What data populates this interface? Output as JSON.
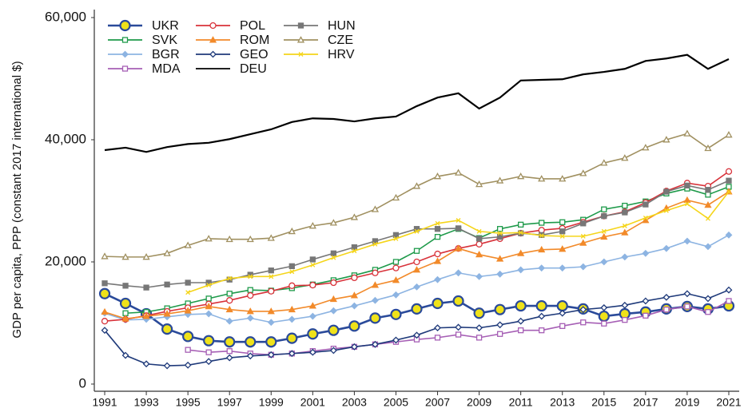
{
  "chart_data": {
    "type": "line",
    "y_label": "GDP per capita, PPP (constant 2017 international $)",
    "x": [
      1991,
      1992,
      1993,
      1994,
      1995,
      1996,
      1997,
      1998,
      1999,
      2000,
      2001,
      2002,
      2003,
      2004,
      2005,
      2006,
      2007,
      2008,
      2009,
      2010,
      2011,
      2012,
      2013,
      2014,
      2015,
      2016,
      2017,
      2018,
      2019,
      2020,
      2021
    ],
    "xlim": [
      1990.5,
      2021.5
    ],
    "xticks": [
      1991,
      1993,
      1995,
      1997,
      1999,
      2001,
      2003,
      2005,
      2007,
      2009,
      2011,
      2013,
      2015,
      2017,
      2019,
      2021
    ],
    "ylim": [
      0,
      60000
    ],
    "yticks": [
      0,
      {
        "value": 20000,
        "label": "20,000"
      },
      {
        "value": 40000,
        "label": "40,000"
      },
      {
        "value": 60000,
        "label": "60,000"
      }
    ],
    "grid": false,
    "legend": "top-left",
    "series": [
      {
        "name": "UKR",
        "color": "#2a4a9a",
        "marker": "circle",
        "marker_fill": "#efe21a",
        "values": [
          14800,
          13200,
          11500,
          9000,
          7800,
          7100,
          6900,
          6900,
          6900,
          7500,
          8200,
          8800,
          9500,
          10800,
          11400,
          12300,
          13200,
          13600,
          11600,
          12200,
          12800,
          12800,
          12800,
          12300,
          11100,
          11500,
          11800,
          12300,
          12700,
          12300,
          12800
        ]
      },
      {
        "name": "SVK",
        "color": "#1e9a4a",
        "marker": "square",
        "marker_fill": "#ffffff",
        "values": [
          null,
          11600,
          11800,
          12400,
          13200,
          14000,
          14800,
          15400,
          15300,
          15700,
          16300,
          17000,
          17800,
          18700,
          20000,
          21800,
          24100,
          25400,
          23900,
          25400,
          26100,
          26400,
          26500,
          26900,
          28600,
          29200,
          29900,
          31200,
          32000,
          31000,
          32300
        ]
      },
      {
        "name": "BGR",
        "color": "#8db4e2",
        "marker": "diamond",
        "marker_fill": "#8db4e2",
        "values": [
          11600,
          10500,
          10600,
          11000,
          11400,
          11500,
          10300,
          10800,
          10100,
          10600,
          11100,
          12000,
          12800,
          13700,
          14600,
          15900,
          17100,
          18200,
          17600,
          18000,
          18700,
          19000,
          19000,
          19200,
          20000,
          20800,
          21400,
          22200,
          23400,
          22500,
          24400
        ]
      },
      {
        "name": "MDA",
        "color": "#a65fb5",
        "marker": "square",
        "marker_fill": "#ffffff",
        "values": [
          null,
          null,
          null,
          null,
          5600,
          5200,
          5400,
          5000,
          4800,
          5000,
          5400,
          5800,
          6100,
          6500,
          6900,
          7300,
          7600,
          8100,
          7600,
          8200,
          8800,
          8800,
          9500,
          10100,
          9900,
          10500,
          11200,
          12200,
          12700,
          11800,
          13600
        ]
      },
      {
        "name": "POL",
        "color": "#d8323a",
        "marker": "circle",
        "marker_fill": "#ffffff",
        "values": [
          10300,
          10600,
          11200,
          11900,
          12500,
          13100,
          13700,
          14500,
          15200,
          16100,
          16200,
          16600,
          17400,
          18200,
          19000,
          20000,
          21300,
          22200,
          22900,
          23800,
          24700,
          25200,
          25500,
          26500,
          27500,
          28200,
          29700,
          31600,
          32900,
          32400,
          34800
        ]
      },
      {
        "name": "ROM",
        "color": "#f28a2a",
        "marker": "triangle",
        "marker_fill": "#f28a2a",
        "values": [
          11800,
          10700,
          11100,
          11500,
          12000,
          12700,
          12200,
          11900,
          11900,
          12200,
          12800,
          13900,
          14500,
          16200,
          17000,
          18700,
          20100,
          22200,
          21200,
          20500,
          21400,
          22000,
          22100,
          23100,
          24100,
          24800,
          26800,
          28800,
          30100,
          29300,
          31500
        ]
      },
      {
        "name": "GEO",
        "color": "#1f3a7a",
        "marker": "diamond",
        "marker_fill": "#ffffff",
        "values": [
          8800,
          4700,
          3300,
          3000,
          3100,
          3700,
          4300,
          4600,
          4800,
          5000,
          5200,
          5500,
          6100,
          6500,
          7200,
          8000,
          9200,
          9300,
          9200,
          9700,
          10300,
          11100,
          11600,
          12200,
          12500,
          12900,
          13600,
          14200,
          14800,
          14000,
          15400
        ]
      },
      {
        "name": "DEU",
        "color": "#000000",
        "marker": "none",
        "marker_fill": "none",
        "values": [
          38300,
          38700,
          38000,
          38800,
          39300,
          39500,
          40100,
          40900,
          41700,
          42900,
          43500,
          43400,
          43000,
          43500,
          43800,
          45500,
          46900,
          47600,
          45100,
          46900,
          49700,
          49800,
          49900,
          50700,
          51100,
          51600,
          52900,
          53300,
          53900,
          51600,
          53200
        ]
      },
      {
        "name": "HUN",
        "color": "#777777",
        "marker": "square",
        "marker_fill": "#777777",
        "values": [
          16500,
          16100,
          15800,
          16300,
          16600,
          16600,
          17100,
          17900,
          18600,
          19300,
          20400,
          21400,
          22400,
          23400,
          24400,
          25400,
          25400,
          25500,
          23800,
          24100,
          24700,
          24400,
          25000,
          26300,
          27500,
          28100,
          29400,
          31500,
          32500,
          31800,
          33300
        ]
      },
      {
        "name": "CZE",
        "color": "#a09060",
        "marker": "triangle",
        "marker_fill": "#ffffff",
        "values": [
          20900,
          20800,
          20800,
          21400,
          22700,
          23800,
          23700,
          23700,
          23900,
          25000,
          25900,
          26400,
          27300,
          28600,
          30500,
          32400,
          34000,
          34600,
          32700,
          33300,
          34000,
          33600,
          33600,
          34500,
          36200,
          37000,
          38700,
          40000,
          41000,
          38600,
          40800
        ]
      },
      {
        "name": "HRV",
        "color": "#f5d51a",
        "marker": "x",
        "marker_fill": "none",
        "values": [
          null,
          null,
          null,
          null,
          15000,
          16200,
          17300,
          17600,
          17600,
          18400,
          19500,
          20700,
          21800,
          22900,
          23800,
          25000,
          26300,
          26800,
          25000,
          24700,
          24800,
          24300,
          24200,
          24200,
          25000,
          25900,
          27200,
          28400,
          29500,
          27100,
          31500
        ]
      }
    ]
  }
}
